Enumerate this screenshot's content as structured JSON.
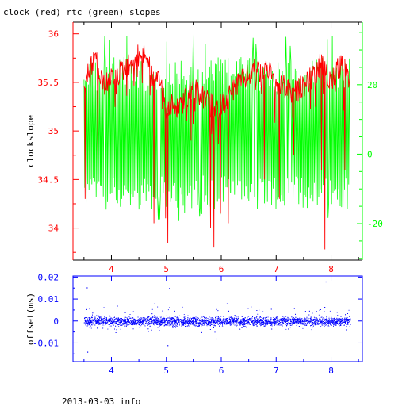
{
  "page_title": "clock (red) rtc (green) slopes",
  "footer": "2013-03-03 info",
  "colors": {
    "clock": "#ff0000",
    "rtc": "#00ff00",
    "offset": "#0000ff",
    "axis": "#000000"
  },
  "chart_data": [
    {
      "type": "line",
      "title": "clock (red) rtc (green) slopes",
      "xlabel": "",
      "ylabel": "clockslope",
      "xlim": [
        3.3,
        8.57
      ],
      "ylim": [
        33.67,
        36.12
      ],
      "y2lim": [
        -30.5,
        38
      ],
      "x_ticks": [
        4,
        5,
        6,
        7,
        8
      ],
      "y_ticks": [
        34,
        34.5,
        35,
        35.5,
        36
      ],
      "y2_ticks": [
        -20,
        0,
        20
      ],
      "legend": "none",
      "grid": false,
      "series": [
        {
          "name": "clock",
          "axis": "left",
          "x_range": [
            3.5,
            8.35
          ],
          "upper_envelope": [
            [
              3.5,
              35.6
            ],
            [
              3.6,
              35.75
            ],
            [
              3.7,
              35.9
            ],
            [
              3.8,
              35.65
            ],
            [
              3.9,
              35.6
            ],
            [
              4.0,
              35.65
            ],
            [
              4.1,
              35.7
            ],
            [
              4.2,
              35.75
            ],
            [
              4.3,
              35.8
            ],
            [
              4.4,
              35.85
            ],
            [
              4.5,
              35.9
            ],
            [
              4.6,
              35.95
            ],
            [
              4.7,
              35.75
            ],
            [
              4.8,
              35.6
            ],
            [
              4.9,
              35.65
            ],
            [
              5.0,
              35.3
            ],
            [
              5.1,
              35.4
            ],
            [
              5.2,
              35.35
            ],
            [
              5.3,
              35.45
            ],
            [
              5.4,
              35.5
            ],
            [
              5.5,
              35.55
            ],
            [
              5.6,
              35.5
            ],
            [
              5.7,
              35.45
            ],
            [
              5.8,
              35.4
            ],
            [
              5.9,
              35.35
            ],
            [
              6.0,
              35.4
            ],
            [
              6.1,
              35.45
            ],
            [
              6.2,
              35.55
            ],
            [
              6.3,
              35.6
            ],
            [
              6.4,
              35.65
            ],
            [
              6.5,
              35.7
            ],
            [
              6.6,
              35.75
            ],
            [
              6.7,
              35.7
            ],
            [
              6.8,
              35.8
            ],
            [
              6.9,
              35.75
            ],
            [
              7.0,
              35.55
            ],
            [
              7.1,
              35.6
            ],
            [
              7.2,
              35.55
            ],
            [
              7.3,
              35.5
            ],
            [
              7.4,
              35.55
            ],
            [
              7.5,
              35.6
            ],
            [
              7.6,
              35.65
            ],
            [
              7.7,
              35.7
            ],
            [
              7.8,
              35.8
            ],
            [
              7.9,
              35.75
            ],
            [
              8.0,
              35.65
            ],
            [
              8.1,
              35.75
            ],
            [
              8.2,
              35.8
            ],
            [
              8.3,
              35.7
            ],
            [
              8.35,
              35.6
            ]
          ],
          "dips": [
            [
              3.52,
              34.3
            ],
            [
              3.75,
              34.7
            ],
            [
              4.77,
              34.05
            ],
            [
              4.98,
              34.1
            ],
            [
              5.02,
              33.85
            ],
            [
              5.45,
              34.9
            ],
            [
              5.8,
              34.0
            ],
            [
              5.86,
              33.8
            ],
            [
              5.98,
              34.15
            ],
            [
              6.12,
              34.05
            ],
            [
              6.78,
              34.5
            ],
            [
              7.05,
              34.3
            ],
            [
              7.32,
              34.75
            ],
            [
              7.82,
              34.6
            ],
            [
              7.88,
              33.78
            ],
            [
              8.25,
              34.6
            ]
          ]
        },
        {
          "name": "rtc",
          "axis": "right",
          "x_range": [
            3.5,
            8.35
          ],
          "band_upper": 28,
          "band_lower": -16,
          "spike_max": 35,
          "spike_min": -20
        }
      ]
    },
    {
      "type": "scatter",
      "xlabel": "",
      "ylabel": "offset(ms)",
      "xlim": [
        3.3,
        8.57
      ],
      "ylim": [
        -0.0185,
        0.0205
      ],
      "x_ticks": [
        4,
        5,
        6,
        7,
        8
      ],
      "y_ticks": [
        -0.01,
        0,
        0.01,
        0.02
      ],
      "y_tick_labels": [
        "-0.01",
        "0",
        "0.01",
        "0.02"
      ],
      "x_range": [
        3.5,
        8.35
      ],
      "core_spread": 0.003,
      "outlier_max": 0.018,
      "outlier_min": -0.014,
      "series": [
        {
          "name": "offset"
        }
      ]
    }
  ]
}
